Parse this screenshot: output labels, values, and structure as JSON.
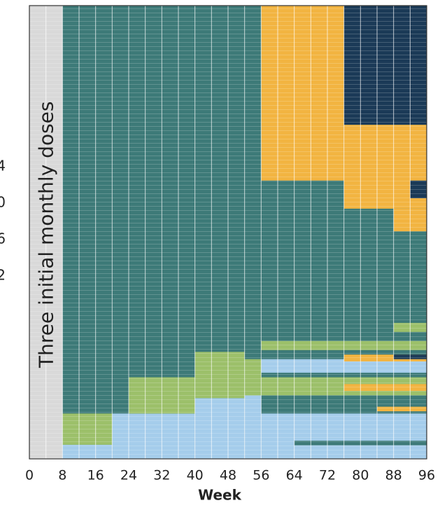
{
  "chart_data": {
    "type": "swimmer",
    "xlabel": "Week",
    "annotation": "Three initial monthly doses",
    "legend_labels": [
      "4",
      "0",
      "6",
      "2"
    ],
    "xlim": [
      0,
      96
    ],
    "ylim": [
      0,
      100
    ],
    "xticks": [
      0,
      8,
      16,
      24,
      32,
      40,
      48,
      56,
      64,
      72,
      80,
      88,
      96
    ],
    "xgrid": [
      4,
      8,
      12,
      16,
      20,
      24,
      28,
      32,
      36,
      40,
      44,
      48,
      52,
      56,
      60,
      64,
      68,
      72,
      76,
      80,
      84,
      88,
      92
    ],
    "segments": [
      {
        "color": "#d9d9d9",
        "start": 0,
        "end": 8,
        "row_start": 0,
        "row_end": 100
      },
      {
        "color": "#3d7a78",
        "start": 8,
        "end": 96,
        "row_start": 0,
        "row_end": 100
      },
      {
        "color": "#f2b441",
        "start": 56,
        "end": 76,
        "row_start": 0,
        "row_end": 38.6
      },
      {
        "color": "#1b3a57",
        "start": 76,
        "end": 96,
        "row_start": 0,
        "row_end": 26.3
      },
      {
        "color": "#f2b441",
        "start": 76,
        "end": 96,
        "row_start": 26.3,
        "row_end": 44.8
      },
      {
        "color": "#f2b441",
        "start": 88,
        "end": 96,
        "row_start": 44.8,
        "row_end": 49.8
      },
      {
        "color": "#1b3a57",
        "start": 92,
        "end": 96,
        "row_start": 38.6,
        "row_end": 42.5
      },
      {
        "color": "#9cc06a",
        "start": 8,
        "end": 20,
        "row_start": 90,
        "row_end": 96.9
      },
      {
        "color": "#a5cdeb",
        "start": 8,
        "end": 20,
        "row_start": 96.9,
        "row_end": 100
      },
      {
        "color": "#a5cdeb",
        "start": 20,
        "end": 40,
        "row_start": 90,
        "row_end": 100
      },
      {
        "color": "#9cc06a",
        "start": 24,
        "end": 40,
        "row_start": 82,
        "row_end": 90
      },
      {
        "color": "#a5cdeb",
        "start": 40,
        "end": 52,
        "row_start": 86.6,
        "row_end": 100
      },
      {
        "color": "#9cc06a",
        "start": 40,
        "end": 52,
        "row_start": 76.4,
        "row_end": 86.6
      },
      {
        "color": "#a5cdeb",
        "start": 52,
        "end": 56,
        "row_start": 86,
        "row_end": 100
      },
      {
        "color": "#9cc06a",
        "start": 52,
        "end": 56,
        "row_start": 78,
        "row_end": 86
      },
      {
        "color": "#a5cdeb",
        "start": 56,
        "end": 96,
        "row_start": 90,
        "row_end": 100
      },
      {
        "color": "#9cc06a",
        "start": 56,
        "end": 96,
        "row_start": 82,
        "row_end": 86
      },
      {
        "color": "#a5cdeb",
        "start": 56,
        "end": 96,
        "row_start": 78,
        "row_end": 81
      },
      {
        "color": "#9cc06a",
        "start": 56,
        "end": 96,
        "row_start": 74,
        "row_end": 76
      },
      {
        "color": "#f2b441",
        "start": 76,
        "end": 96,
        "row_start": 77,
        "row_end": 78.5
      },
      {
        "color": "#f2b441",
        "start": 76,
        "end": 96,
        "row_start": 83.5,
        "row_end": 85
      },
      {
        "color": "#1b3a57",
        "start": 88,
        "end": 96,
        "row_start": 77,
        "row_end": 78
      },
      {
        "color": "#9cc06a",
        "start": 88,
        "end": 96,
        "row_start": 70,
        "row_end": 72
      },
      {
        "color": "#3d7a78",
        "start": 56,
        "end": 96,
        "row_start": 86,
        "row_end": 88
      },
      {
        "color": "#3d7a78",
        "start": 64,
        "end": 96,
        "row_start": 96,
        "row_end": 97
      },
      {
        "color": "#f2b441",
        "start": 84,
        "end": 96,
        "row_start": 88.5,
        "row_end": 89.5
      }
    ]
  }
}
